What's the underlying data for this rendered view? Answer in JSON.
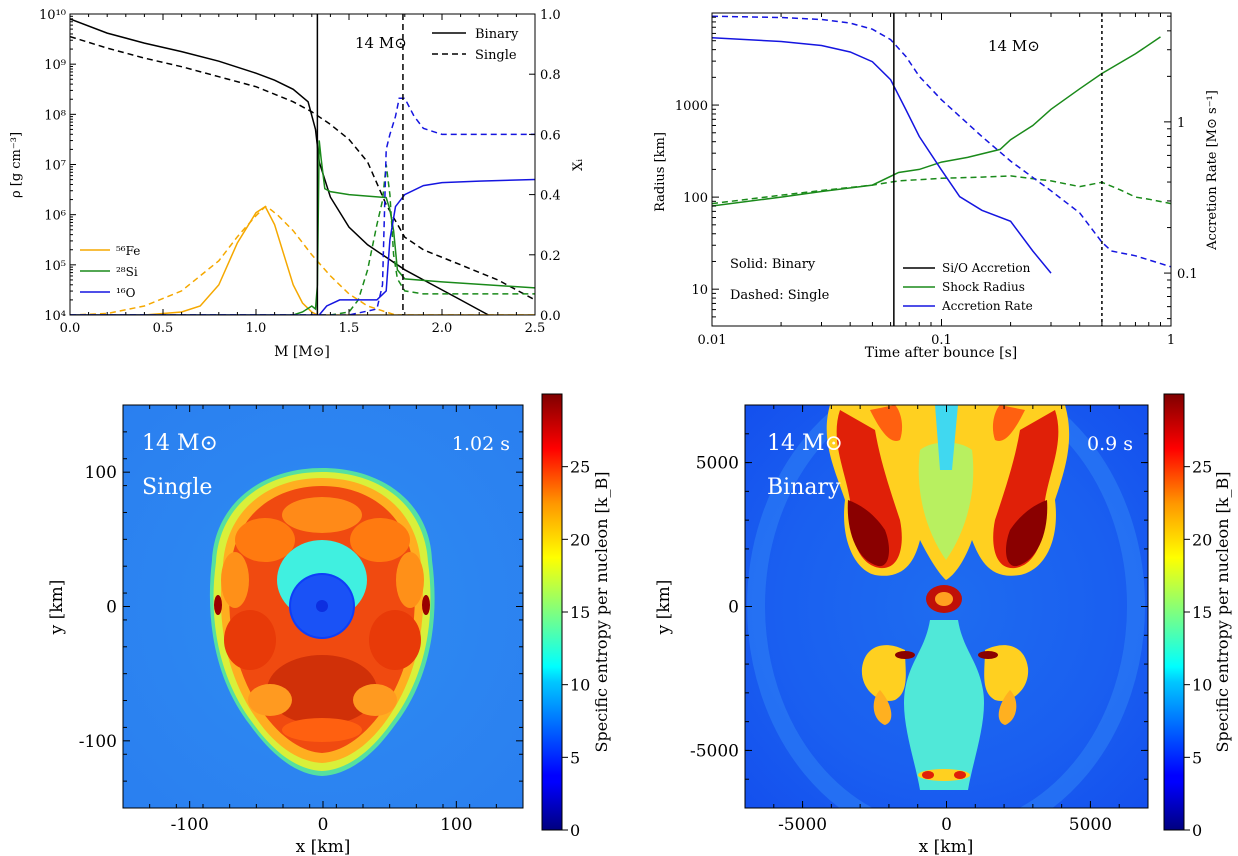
{
  "chart_data": [
    {
      "id": "density",
      "type": "line",
      "xlabel": "M [M⊙]",
      "ylabel": "ρ [g cm⁻³]",
      "y2label": "Xᵢ",
      "xlim": [
        0,
        2.5
      ],
      "ylim_log10": [
        4,
        10
      ],
      "y2lim": [
        0,
        1
      ],
      "xticks": [
        "0.0",
        "0.5",
        "1.0",
        "1.5",
        "2.0",
        "2.5"
      ],
      "yticks": [
        "10⁴",
        "10⁵",
        "10⁶",
        "10⁷",
        "10⁸",
        "10⁹",
        "10¹⁰"
      ],
      "y2ticks": [
        "0.0",
        "0.2",
        "0.4",
        "0.6",
        "0.8",
        "1.0"
      ],
      "annotation": "14 M⊙",
      "vlines": [
        {
          "x": 1.33,
          "style": "solid"
        },
        {
          "x": 1.79,
          "style": "dashed"
        }
      ],
      "legend_style": [
        {
          "label": "Binary",
          "style": "solid"
        },
        {
          "label": "Single",
          "style": "dashed"
        }
      ],
      "legend_species": [
        {
          "label": "⁵⁶Fe",
          "color": "#f5a800"
        },
        {
          "label": "²⁸Si",
          "color": "#1a8a1a"
        },
        {
          "label": "¹⁶O",
          "color": "#1515e0"
        }
      ],
      "series": [
        {
          "name": "density_binary",
          "axis": "left",
          "style": "solid",
          "color": "#000000",
          "x": [
            0,
            0.2,
            0.4,
            0.6,
            0.8,
            1.0,
            1.1,
            1.2,
            1.28,
            1.32,
            1.34,
            1.4,
            1.5,
            1.6,
            1.7,
            1.8,
            1.9,
            2.0,
            2.1,
            2.2,
            2.25
          ],
          "y": [
            9.9,
            9.62,
            9.42,
            9.25,
            9.06,
            8.82,
            8.68,
            8.5,
            8.25,
            7.7,
            7.05,
            6.35,
            5.75,
            5.4,
            5.15,
            4.9,
            4.7,
            4.5,
            4.3,
            4.1,
            4.0
          ]
        },
        {
          "name": "density_single",
          "axis": "left",
          "style": "dashed",
          "color": "#000000",
          "x": [
            0,
            0.2,
            0.4,
            0.6,
            0.8,
            1.0,
            1.2,
            1.3,
            1.4,
            1.5,
            1.6,
            1.7,
            1.8,
            1.9,
            2.0,
            2.1,
            2.2,
            2.3,
            2.4,
            2.5
          ],
          "y": [
            9.55,
            9.32,
            9.12,
            8.95,
            8.75,
            8.55,
            8.25,
            8.05,
            7.8,
            7.5,
            7.05,
            6.2,
            5.55,
            5.3,
            5.15,
            5.0,
            4.85,
            4.7,
            4.5,
            4.3
          ]
        },
        {
          "name": "Fe_binary",
          "axis": "right",
          "style": "solid",
          "color": "#f5a800",
          "x": [
            0,
            0.4,
            0.6,
            0.7,
            0.8,
            0.9,
            1.0,
            1.05,
            1.1,
            1.15,
            1.2,
            1.25,
            1.3,
            1.33,
            1.35,
            2.5
          ],
          "y": [
            0,
            0,
            0.01,
            0.03,
            0.1,
            0.24,
            0.34,
            0.36,
            0.3,
            0.2,
            0.1,
            0.04,
            0.01,
            0,
            0,
            0
          ]
        },
        {
          "name": "Fe_single",
          "axis": "right",
          "style": "dashed",
          "color": "#f5a800",
          "x": [
            0,
            0.2,
            0.4,
            0.6,
            0.8,
            0.9,
            1.0,
            1.05,
            1.08,
            1.12,
            1.2,
            1.3,
            1.4,
            1.5,
            1.6,
            1.7,
            1.75,
            1.8,
            2.5
          ],
          "y": [
            0,
            0.005,
            0.03,
            0.08,
            0.18,
            0.26,
            0.33,
            0.36,
            0.35,
            0.33,
            0.28,
            0.2,
            0.13,
            0.07,
            0.03,
            0.01,
            0,
            0,
            0
          ]
        },
        {
          "name": "Si_binary",
          "axis": "right",
          "style": "solid",
          "color": "#1a8a1a",
          "x": [
            0,
            1.2,
            1.25,
            1.3,
            1.32,
            1.33,
            1.34,
            1.35,
            1.37,
            1.4,
            1.5,
            1.6,
            1.7,
            1.72,
            1.74,
            1.76,
            1.8,
            2.0,
            2.5
          ],
          "y": [
            0,
            0,
            0.01,
            0.03,
            0.02,
            0.1,
            0.58,
            0.52,
            0.42,
            0.41,
            0.4,
            0.395,
            0.39,
            0.35,
            0.28,
            0.15,
            0.12,
            0.11,
            0.09
          ]
        },
        {
          "name": "Si_single",
          "axis": "right",
          "style": "dashed",
          "color": "#1a8a1a",
          "x": [
            0,
            1.4,
            1.5,
            1.55,
            1.6,
            1.65,
            1.68,
            1.7,
            1.72,
            1.74,
            1.76,
            1.8,
            1.9,
            2.0,
            2.5
          ],
          "y": [
            0,
            0,
            0.01,
            0.05,
            0.15,
            0.3,
            0.38,
            0.5,
            0.4,
            0.2,
            0.12,
            0.08,
            0.07,
            0.07,
            0.07
          ]
        },
        {
          "name": "O_binary",
          "axis": "right",
          "style": "solid",
          "color": "#1515e0",
          "x": [
            0,
            1.3,
            1.34,
            1.38,
            1.45,
            1.55,
            1.65,
            1.7,
            1.72,
            1.75,
            1.8,
            1.9,
            2.0,
            2.2,
            2.5
          ],
          "y": [
            0,
            0,
            0,
            0.03,
            0.05,
            0.05,
            0.05,
            0.08,
            0.25,
            0.36,
            0.4,
            0.43,
            0.44,
            0.445,
            0.45
          ]
        },
        {
          "name": "O_single",
          "axis": "right",
          "style": "dashed",
          "color": "#1515e0",
          "x": [
            0,
            1.5,
            1.65,
            1.68,
            1.7,
            1.72,
            1.73,
            1.75,
            1.77,
            1.8,
            1.85,
            1.9,
            2.0,
            2.2,
            2.5
          ],
          "y": [
            0,
            0,
            0.02,
            0.1,
            0.55,
            0.6,
            0.62,
            0.66,
            0.72,
            0.72,
            0.66,
            0.62,
            0.6,
            0.6,
            0.6
          ]
        }
      ]
    },
    {
      "id": "shock",
      "type": "line",
      "xlabel": "Time after bounce [s]",
      "ylabel": "Radius [km]",
      "y2label": "Accretion Rate [M⊙ s⁻¹]",
      "xlim_log10": [
        -2,
        0
      ],
      "ylim_log10": [
        0.6,
        4.0
      ],
      "y2lim_log10": [
        -1.35,
        0.72
      ],
      "xticks": [
        "0.01",
        "0.1",
        "1"
      ],
      "yticks": [
        "10",
        "100",
        "1000"
      ],
      "y2ticks": [
        "0.1",
        "1"
      ],
      "annotation": "14 M⊙",
      "vlines": [
        {
          "x": 0.062,
          "style": "solid"
        },
        {
          "x": 0.5,
          "style": "dotted"
        }
      ],
      "text_notes": [
        "Solid: Binary",
        "Dashed: Single"
      ],
      "legend": [
        {
          "label": "Si/O Accretion",
          "color": "#000000"
        },
        {
          "label": "Shock Radius",
          "color": "#1a8a1a"
        },
        {
          "label": "Accretion Rate",
          "color": "#1515e0"
        }
      ],
      "series": [
        {
          "name": "shock_binary",
          "axis": "left",
          "style": "solid",
          "color": "#1a8a1a",
          "x": [
            0.01,
            0.02,
            0.03,
            0.05,
            0.065,
            0.08,
            0.1,
            0.13,
            0.18,
            0.2,
            0.25,
            0.3,
            0.4,
            0.5,
            0.7,
            0.9
          ],
          "y": [
            80,
            100,
            115,
            135,
            185,
            200,
            240,
            270,
            330,
            420,
            600,
            900,
            1500,
            2200,
            3600,
            5500
          ]
        },
        {
          "name": "shock_single",
          "axis": "left",
          "style": "dashed",
          "color": "#1a8a1a",
          "x": [
            0.01,
            0.02,
            0.03,
            0.05,
            0.065,
            0.1,
            0.15,
            0.2,
            0.3,
            0.4,
            0.5,
            0.6,
            0.7,
            0.8,
            1.0
          ],
          "y": [
            85,
            105,
            118,
            135,
            150,
            160,
            165,
            170,
            150,
            130,
            145,
            120,
            100,
            95,
            85
          ]
        },
        {
          "name": "accretion_binary",
          "axis": "right",
          "style": "solid",
          "color": "#1515e0",
          "x": [
            0.01,
            0.02,
            0.03,
            0.04,
            0.05,
            0.06,
            0.07,
            0.08,
            0.1,
            0.12,
            0.15,
            0.2,
            0.25,
            0.3
          ],
          "y": [
            3.6,
            3.4,
            3.2,
            2.9,
            2.5,
            1.9,
            1.2,
            0.8,
            0.48,
            0.32,
            0.26,
            0.22,
            0.14,
            0.1
          ]
        },
        {
          "name": "accretion_single",
          "axis": "right",
          "style": "dashed",
          "color": "#1515e0",
          "x": [
            0.01,
            0.02,
            0.03,
            0.04,
            0.05,
            0.06,
            0.07,
            0.08,
            0.1,
            0.15,
            0.2,
            0.3,
            0.4,
            0.5,
            0.55,
            0.7,
            1.0
          ],
          "y": [
            5.0,
            4.9,
            4.75,
            4.5,
            4.1,
            3.5,
            2.7,
            2.0,
            1.4,
            0.8,
            0.55,
            0.35,
            0.25,
            0.16,
            0.14,
            0.13,
            0.11
          ]
        }
      ]
    },
    {
      "id": "entropy_single",
      "type": "heatmap",
      "title_mass": "14 M⊙",
      "title_label": "Single",
      "time": "1.02 s",
      "xlabel": "x [km]",
      "ylabel": "y [km]",
      "xlim": [
        -150,
        150
      ],
      "ylim": [
        -150,
        150
      ],
      "xticks": [
        "-100",
        "0",
        "100"
      ],
      "yticks": [
        "-100",
        "0",
        "100"
      ],
      "colorbar_label": "Specific entropy per nucleon [k_B]",
      "colorbar_ticks": [
        "0",
        "5",
        "10",
        "15",
        "20",
        "25"
      ],
      "colorbar_range": [
        0,
        30
      ]
    },
    {
      "id": "entropy_binary",
      "type": "heatmap",
      "title_mass": "14 M⊙",
      "title_label": "Binary",
      "time": "0.9 s",
      "xlabel": "x [km]",
      "ylabel": "y [km]",
      "xlim": [
        -7000,
        7000
      ],
      "ylim": [
        -7000,
        7000
      ],
      "xticks": [
        "-5000",
        "0",
        "5000"
      ],
      "yticks": [
        "-5000",
        "0",
        "5000"
      ],
      "colorbar_label": "Specific entropy per nucleon [k_B]",
      "colorbar_ticks": [
        "0",
        "5",
        "10",
        "15",
        "20",
        "25"
      ],
      "colorbar_range": [
        0,
        30
      ]
    }
  ]
}
